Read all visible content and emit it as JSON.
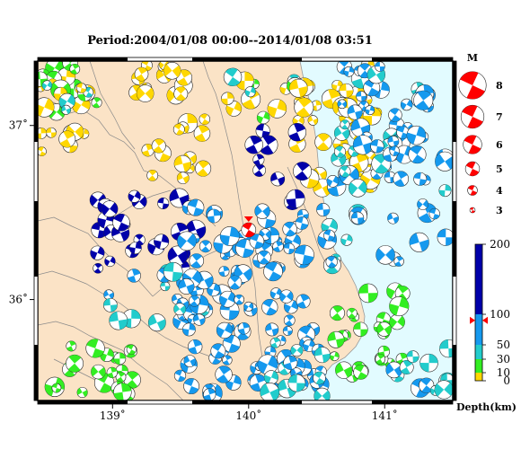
{
  "title": "Period:2004/01/08 00:00--2014/01/08 03:51",
  "map": {
    "lon_range": [
      138.45,
      141.5
    ],
    "lat_range": [
      35.42,
      37.37
    ],
    "lon_ticks": [
      {
        "value": 139,
        "label": "139˚"
      },
      {
        "value": 140,
        "label": "140˚"
      },
      {
        "value": 141,
        "label": "141˚"
      }
    ],
    "lat_ticks": [
      {
        "value": 37,
        "label": "37˚"
      },
      {
        "value": 36,
        "label": "36˚"
      }
    ],
    "colors": {
      "land": "#fbe3c6",
      "sea": "#e2fbff",
      "border": "#8a8a8a",
      "frame": "#000000"
    },
    "main_event": {
      "lon": 140.0,
      "lat": 36.4,
      "mag": 4.3,
      "depth_km": 90,
      "color": "#ff0000"
    }
  },
  "magnitude_legend": {
    "title": "M",
    "items": [
      {
        "mag": 8,
        "label": "8"
      },
      {
        "mag": 7,
        "label": "7"
      },
      {
        "mag": 6,
        "label": "6"
      },
      {
        "mag": 5,
        "label": "5"
      },
      {
        "mag": 4,
        "label": "4"
      },
      {
        "mag": 3,
        "label": "3"
      }
    ],
    "color": "#ff0000"
  },
  "depth_scale": {
    "title": "Depth(km)",
    "max": 200,
    "ticks": [
      {
        "value": 200,
        "label": "200"
      },
      {
        "value": 100,
        "label": "100"
      },
      {
        "value": 50,
        "label": "50"
      },
      {
        "value": 30,
        "label": "30"
      },
      {
        "value": 10,
        "label": "10"
      },
      {
        "value": 0,
        "label": "0"
      }
    ],
    "bands": [
      {
        "from": 0,
        "to": 10,
        "color": "#ffd700"
      },
      {
        "from": 10,
        "to": 30,
        "color": "#33ee22"
      },
      {
        "from": 30,
        "to": 50,
        "color": "#22cccc"
      },
      {
        "from": 50,
        "to": 100,
        "color": "#1599ee"
      },
      {
        "from": 100,
        "to": 200,
        "color": "#0000aa"
      }
    ],
    "marker_depth_km": 90
  }
}
